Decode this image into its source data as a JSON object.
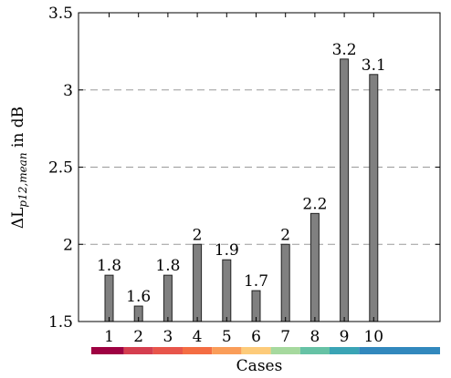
{
  "chart_data": {
    "type": "bar",
    "categories": [
      "1",
      "2",
      "3",
      "4",
      "5",
      "6",
      "7",
      "8",
      "9",
      "10"
    ],
    "values": [
      1.8,
      1.6,
      1.8,
      2.0,
      1.9,
      1.7,
      2.0,
      2.2,
      3.2,
      3.1
    ],
    "data_labels": [
      "1.8",
      "1.6",
      "1.8",
      "2",
      "1.9",
      "1.7",
      "2",
      "2.2",
      "3.2",
      "3.1"
    ],
    "xlabel": "Cases",
    "ylabel": "ΔL",
    "ylabel_subscript": "p12,mean",
    "ylabel_suffix": " in dB",
    "ylim": [
      1.5,
      3.5
    ],
    "yticks": [
      1.5,
      2,
      2.5,
      3,
      3.5
    ],
    "ytick_labels": [
      "1.5",
      "2",
      "2.5",
      "3",
      "3.5"
    ],
    "grid": "horizontal dashed",
    "bar_color": "#808080",
    "category_colors": [
      "#9e0142",
      "#d53e4f",
      "#e8554b",
      "#f46d43",
      "#fa9d59",
      "#fdcb7a",
      "#a6d99e",
      "#66c2a5",
      "#3aa4b5",
      "#3288bd"
    ]
  }
}
